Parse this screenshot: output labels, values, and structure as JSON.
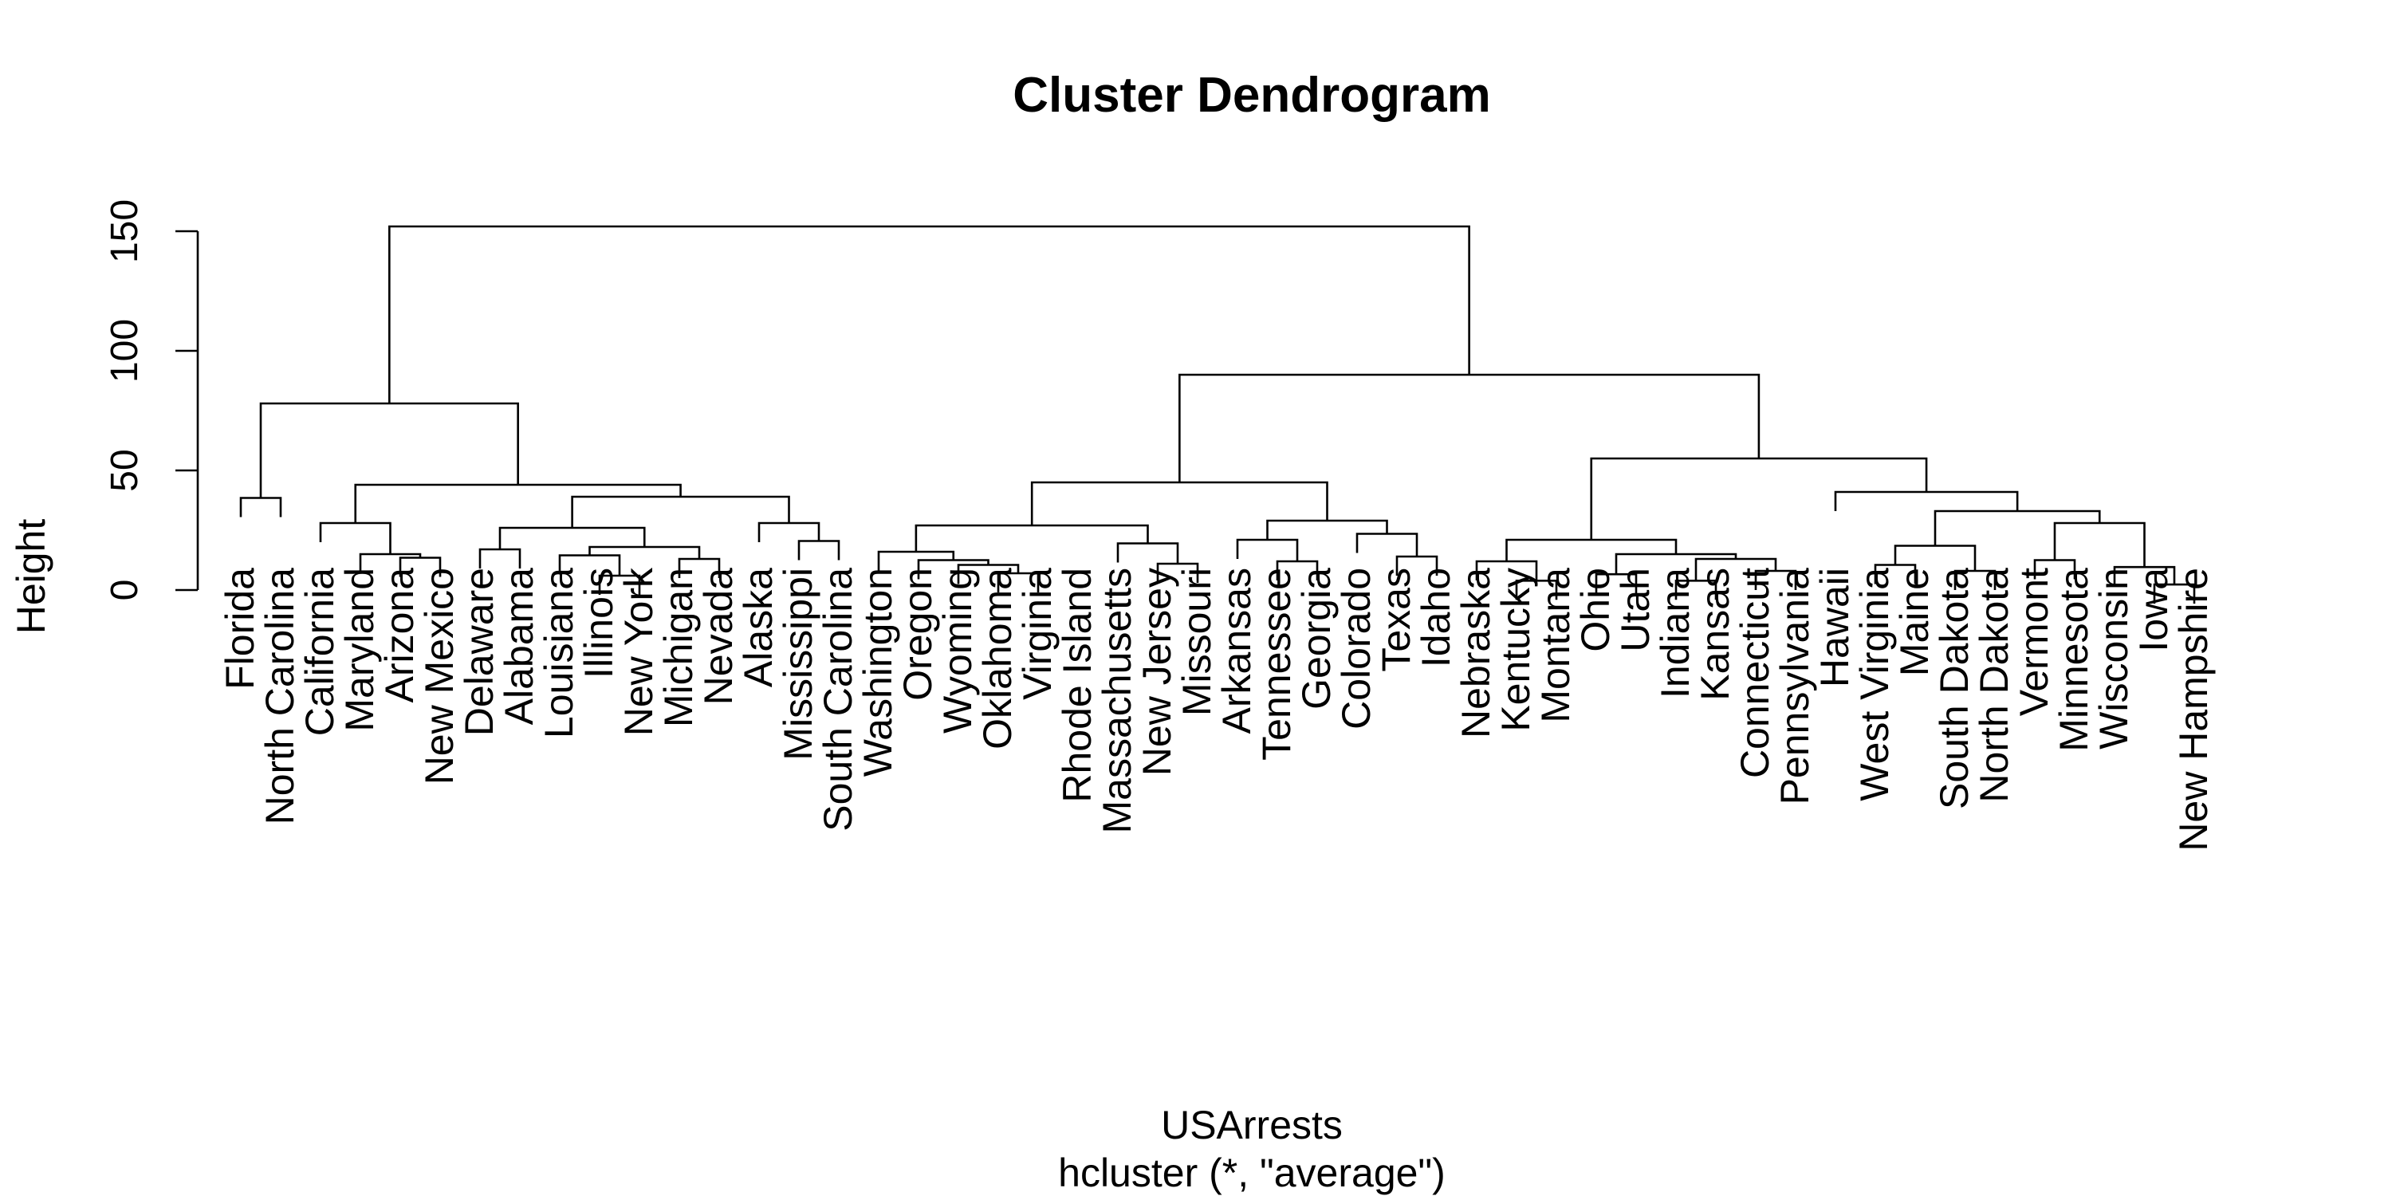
{
  "chart_data": {
    "type": "dendrogram",
    "title": "Cluster Dendrogram",
    "ylabel": "Height",
    "xlabel": "USArrests",
    "sub": "hcluster (*, \"average\")",
    "ylim": [
      0,
      150
    ],
    "yticks": [
      0,
      50,
      100,
      150
    ],
    "hang": 8,
    "leaves": [
      "Florida",
      "North Carolina",
      "California",
      "Maryland",
      "Arizona",
      "New Mexico",
      "Delaware",
      "Alabama",
      "Louisiana",
      "Illinois",
      "New York",
      "Michigan",
      "Nevada",
      "Alaska",
      "Mississippi",
      "South Carolina",
      "Washington",
      "Oregon",
      "Wyoming",
      "Oklahoma",
      "Virginia",
      "Rhode Island",
      "Massachusetts",
      "New Jersey",
      "Missouri",
      "Arkansas",
      "Tennessee",
      "Georgia",
      "Colorado",
      "Texas",
      "Idaho",
      "Nebraska",
      "Kentucky",
      "Montana",
      "Ohio",
      "Utah",
      "Indiana",
      "Kansas",
      "Connecticut",
      "Pennsylvania",
      "Hawaii",
      "West Virginia",
      "Maine",
      "South Dakota",
      "North Dakota",
      "Vermont",
      "Minnesota",
      "Wisconsin",
      "Iowa",
      "New Hampshire"
    ],
    "merges": [
      {
        "left": "Iowa",
        "right": "New Hampshire",
        "height": 2.3
      },
      {
        "left": "Ohio",
        "right": "Utah",
        "height": 6.6
      },
      {
        "left": "Illinois",
        "right": "New York",
        "height": 6.0
      },
      {
        "left": "Kentucky",
        "right": "Montana",
        "height": 3.9
      },
      {
        "left": "Indiana",
        "right": "Kansas",
        "height": 3.9
      },
      {
        "left": "Oklahoma",
        "right": "Virginia",
        "height": 7.0
      },
      {
        "left": "Connecticut",
        "right": "Pennsylvania",
        "height": 8.0
      },
      {
        "left": "South Dakota",
        "right": "North Dakota",
        "height": 8.0
      },
      {
        "left": "Wisconsin",
        "right": [
          "Iowa",
          "New Hampshire"
        ],
        "height": 9.6
      },
      {
        "left": "West Virginia",
        "right": "Maine",
        "height": 10.5
      },
      {
        "left": "Wyoming",
        "right": [
          "Oklahoma",
          "Virginia"
        ],
        "height": 10.5
      },
      {
        "left": "New Jersey",
        "right": "Missouri",
        "height": 11.0
      },
      {
        "left": "Tennessee",
        "right": "Georgia",
        "height": 12.0
      },
      {
        "left": "Nebraska",
        "right": [
          "Kentucky",
          "Montana"
        ],
        "height": 12.0
      },
      {
        "left": "Vermont",
        "right": "Minnesota",
        "height": 12.5
      },
      {
        "left": "Michigan",
        "right": "Nevada",
        "height": 13.0
      },
      {
        "left": "Arizona",
        "right": "New Mexico",
        "height": 13.5
      },
      {
        "left": [
          "Indiana",
          "Kansas"
        ],
        "right": [
          "Connecticut",
          "Pennsylvania"
        ],
        "height": 13.0
      },
      {
        "left": "Oregon",
        "right": [
          "Wyoming",
          "Oklahoma",
          "Virginia"
        ],
        "height": 12.5
      },
      {
        "left": "Texas",
        "right": "Idaho",
        "height": 14.0
      },
      {
        "left": "Louisiana",
        "right": "Illinois",
        "height": 14.5
      },
      {
        "left": "Maryland",
        "right": [
          "Arizona",
          "New Mexico"
        ],
        "height": 15.0
      },
      {
        "left": [
          "Ohio",
          "Utah"
        ],
        "right": [
          "Indiana",
          "Kansas",
          "Connecticut",
          "Pennsylvania"
        ],
        "height": 15.0
      },
      {
        "left": "Washington",
        "right": [
          "Oregon",
          "Wyoming",
          "Oklahoma",
          "Virginia"
        ],
        "height": 16.0
      },
      {
        "left": "Delaware",
        "right": "Alabama",
        "height": 17.0
      },
      {
        "left": [
          "Illinois",
          "New York"
        ],
        "right": [
          "Michigan",
          "Nevada"
        ],
        "height": 18.0
      },
      {
        "left": [
          "West Virginia",
          "Maine"
        ],
        "right": [
          "South Dakota",
          "North Dakota"
        ],
        "height": 18.5
      },
      {
        "left": "Massachusetts",
        "right": [
          "New Jersey",
          "Missouri"
        ],
        "height": 19.5
      },
      {
        "left": "Mississippi",
        "right": "South Carolina",
        "height": 20.5
      },
      {
        "left": "Arkansas",
        "right": [
          "Tennessee",
          "Georgia"
        ],
        "height": 21.0
      },
      {
        "left": [
          "Kentucky",
          "Montana",
          "Nebraska"
        ],
        "right": [
          "Ohio",
          "Utah",
          "Indiana",
          "Kansas",
          "Connecticut",
          "Pennsylvania"
        ],
        "height": 21.0
      },
      {
        "left": "Colorado",
        "right": [
          "Texas",
          "Idaho"
        ],
        "height": 23.5
      },
      {
        "left": [
          "Delaware",
          "Alabama"
        ],
        "right": [
          "Louisiana",
          "Illinois",
          "New York",
          "Michigan",
          "Nevada"
        ],
        "height": 26.0
      },
      {
        "left": [
          "Washington",
          "Oregon",
          "Wyoming",
          "Oklahoma",
          "Virginia"
        ],
        "right": [
          "Rhode Island",
          "Massachusetts",
          "New Jersey",
          "Missouri"
        ],
        "height": 27.0
      },
      {
        "left": "California",
        "right": [
          "Maryland",
          "Arizona",
          "New Mexico"
        ],
        "height": 28.0
      },
      {
        "left": "Alaska",
        "right": [
          "Mississippi",
          "South Carolina"
        ],
        "height": 28.0
      },
      {
        "left": [
          "Vermont",
          "Minnesota"
        ],
        "right": [
          "Wisconsin",
          "Iowa",
          "New Hampshire"
        ],
        "height": 28.0
      },
      {
        "left": [
          "Arkansas",
          "Tennessee",
          "Georgia"
        ],
        "right": [
          "Colorado",
          "Texas",
          "Idaho"
        ],
        "height": 29.0
      },
      {
        "left": [
          "West Virginia",
          "Maine",
          "South Dakota",
          "North Dakota"
        ],
        "right": [
          "Vermont",
          "Minnesota",
          "Wisconsin",
          "Iowa",
          "New Hampshire"
        ],
        "height": 33.0
      },
      {
        "left": "Florida",
        "right": "North Carolina",
        "height": 38.5
      },
      {
        "left": [
          "Delaware",
          "Alabama",
          "Louisiana",
          "Illinois",
          "New York",
          "Michigan",
          "Nevada"
        ],
        "right": [
          "Alaska",
          "Mississippi",
          "South Carolina"
        ],
        "height": 39.0
      },
      {
        "left": "Hawaii",
        "right": [
          "West Virginia",
          "Maine",
          "South Dakota",
          "North Dakota",
          "Vermont",
          "Minnesota",
          "Wisconsin",
          "Iowa",
          "New Hampshire"
        ],
        "height": 41.0
      },
      {
        "left": [
          "California",
          "Maryland",
          "Arizona",
          "New Mexico"
        ],
        "right": [
          "Delaware",
          "Alabama",
          "Louisiana",
          "Illinois",
          "New York",
          "Michigan",
          "Nevada",
          "Alaska",
          "Mississippi",
          "South Carolina"
        ],
        "height": 44.0
      },
      {
        "left": [
          "Washington",
          "Oregon",
          "Wyoming",
          "Oklahoma",
          "Virginia",
          "Rhode Island",
          "Massachusetts",
          "New Jersey",
          "Missouri"
        ],
        "right": [
          "Arkansas",
          "Tennessee",
          "Georgia",
          "Colorado",
          "Texas",
          "Idaho"
        ],
        "height": 45.0
      },
      {
        "left": [
          "Nebraska",
          "Kentucky",
          "Montana",
          "Ohio",
          "Utah",
          "Indiana",
          "Kansas",
          "Connecticut",
          "Pennsylvania"
        ],
        "right": [
          "Hawaii",
          "West Virginia",
          "Maine",
          "South Dakota",
          "North Dakota",
          "Vermont",
          "Minnesota",
          "Wisconsin",
          "Iowa",
          "New Hampshire"
        ],
        "height": 55.0
      },
      {
        "left": [
          "Florida",
          "North Carolina"
        ],
        "right": [
          "California",
          "Maryland",
          "Arizona",
          "New Mexico",
          "Delaware",
          "Alabama",
          "Louisiana",
          "Illinois",
          "New York",
          "Michigan",
          "Nevada",
          "Alaska",
          "Mississippi",
          "South Carolina"
        ],
        "height": 78.0
      },
      {
        "left": [
          "Washington",
          "Rhode Island",
          "Arkansas",
          "Colorado"
        ],
        "right": [
          "Nebraska",
          "Ohio",
          "Hawaii",
          "Vermont"
        ],
        "height": 90.0
      },
      {
        "left": [
          "Florida",
          "California"
        ],
        "right": [
          "Washington",
          "Nebraska"
        ],
        "height": 152.0
      }
    ]
  }
}
